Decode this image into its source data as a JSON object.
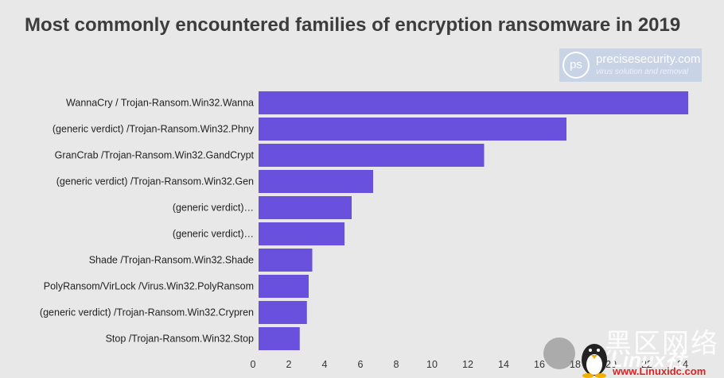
{
  "chart_data": {
    "type": "bar",
    "orientation": "horizontal",
    "title": "Most commonly encountered families of encryption ransomware in 2019",
    "categories": [
      "WannaCry / Trojan-Ransom.Win32.Wanna",
      "(generic verdict) /Trojan-Ransom.Win32.Phny",
      "GranCrab /Trojan-Ransom.Win32.GandCrypt",
      "(generic verdict) /Trojan-Ransom.Win32.Gen",
      "(generic verdict)…",
      "(generic verdict)…",
      "Shade /Trojan-Ransom.Win32.Shade",
      "PolyRansom/VirLock /Virus.Win32.PolyRansom",
      "(generic verdict) /Trojan-Ransom.Win32.Crypren",
      "Stop /Trojan-Ransom.Win32.Stop"
    ],
    "values": [
      24.0,
      17.2,
      12.6,
      6.4,
      5.2,
      4.8,
      3.0,
      2.8,
      2.7,
      2.3
    ],
    "xlim": [
      0,
      24.4
    ],
    "xticks": [
      "0",
      "2",
      "4",
      "6",
      "8",
      "10",
      "12",
      "14",
      "16",
      "18",
      "20",
      "22",
      "24"
    ],
    "grid": false,
    "bar_color": "#6a51dd"
  },
  "logo": {
    "mark": "ps",
    "name": "precisesecurity.com",
    "tagline": "virus solution and removal"
  },
  "watermark": {
    "chinese": "黑区网络",
    "brand": "Linux社",
    "url": "www.Linuxidc.com",
    "icon": "tux-penguin-icon"
  }
}
